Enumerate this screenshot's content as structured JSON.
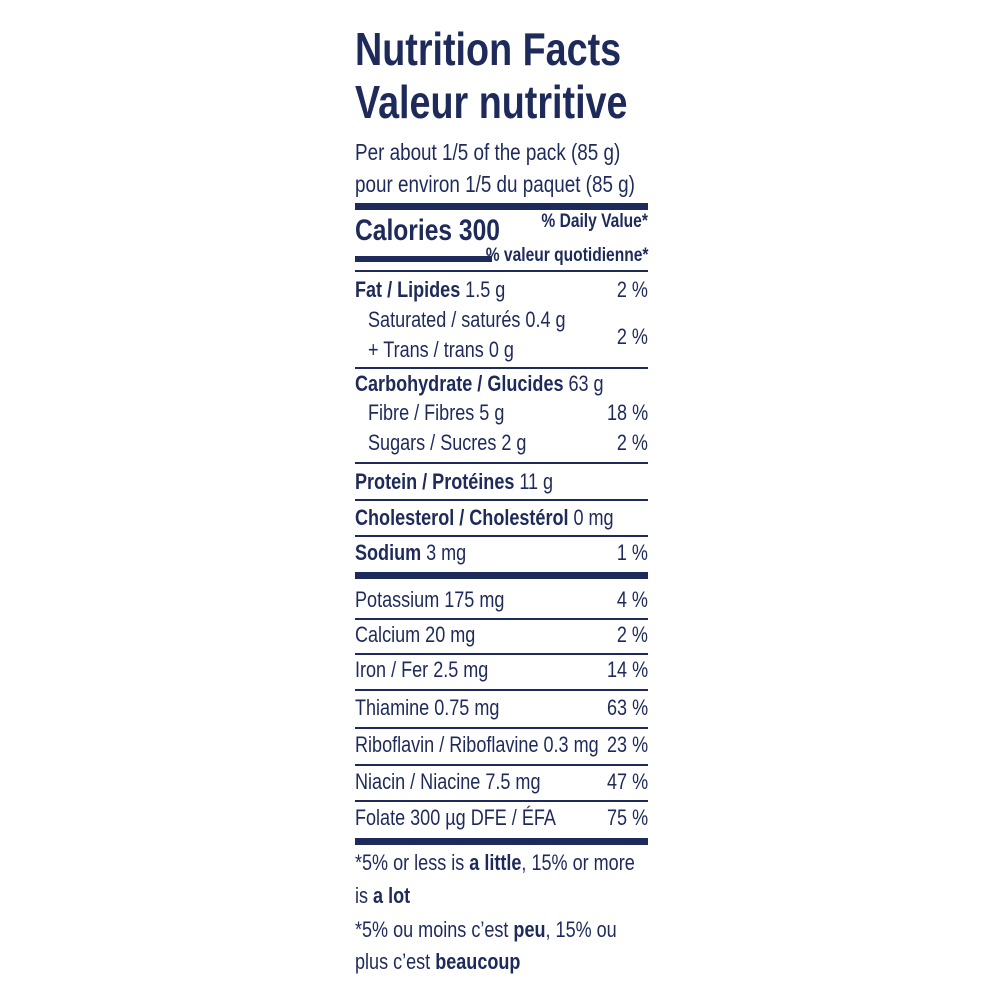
{
  "title": "Nutrition Facts",
  "title_fr": "Valeur nutritive",
  "serving": [
    "Per about 1/5 of the pack (85 g)",
    "pour environ 1/5 du paquet (85 g)"
  ],
  "calories": "Calories 300",
  "daily_value_header": [
    "% Daily Value*",
    "% valeur quotidienne*"
  ],
  "fat": {
    "name": "Fat / Lipides",
    "amount": "1.5 g",
    "dv": "2 %"
  },
  "fat_sub": {
    "lines": [
      "Saturated / saturés 0.4 g",
      "+ Trans / trans 0 g"
    ],
    "dv": "2 %"
  },
  "carbohydrate": {
    "name": "Carbohydrate / Glucides",
    "amount": "63 g"
  },
  "carbohydrate_sub": [
    {
      "text": "Fibre / Fibres 5 g",
      "dv": "18 %"
    },
    {
      "text": "Sugars / Sucres 2 g",
      "dv": "2 %"
    }
  ],
  "protein": {
    "name": "Protein / Protéines",
    "amount": "11 g"
  },
  "cholesterol": {
    "name": "Cholesterol / Cholestérol",
    "amount": "0 mg"
  },
  "sodium": {
    "name": "Sodium",
    "amount": "3 mg",
    "dv": "1 %"
  },
  "minerals": [
    {
      "text": "Potassium 175 mg",
      "dv": "4 %"
    },
    {
      "text": "Calcium 20 mg",
      "dv": "2 %"
    },
    {
      "text": "Iron / Fer 2.5 mg",
      "dv": "14 %"
    },
    {
      "text": "Thiamine 0.75 mg",
      "dv": "63 %"
    },
    {
      "text": "Riboflavin / Riboflavine 0.3 mg",
      "dv": "23 %"
    },
    {
      "text": "Niacin / Niacine 7.5 mg",
      "dv": "47 %"
    },
    {
      "text": "Folate 300 µg DFE / ÉFA",
      "dv": "75 %"
    }
  ],
  "footnote": [
    [
      {
        "text": "*5% or less is ",
        "bold": false
      },
      {
        "text": "a little",
        "bold": true
      },
      {
        "text": ", 15% or more",
        "bold": false
      }
    ],
    [
      {
        "text": "is ",
        "bold": false
      },
      {
        "text": "a lot",
        "bold": true
      }
    ],
    [
      {
        "text": "*5% ou moins c’est ",
        "bold": false
      },
      {
        "text": "peu",
        "bold": true
      },
      {
        "text": ", 15% ou",
        "bold": false
      }
    ],
    [
      {
        "text": "plus c’est ",
        "bold": false
      },
      {
        "text": "beaucoup",
        "bold": true
      }
    ]
  ]
}
